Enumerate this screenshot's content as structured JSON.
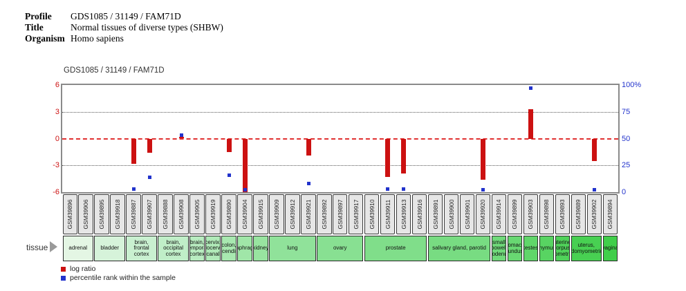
{
  "header": {
    "rows": [
      {
        "label": "Profile",
        "value": "GDS1085 / 31149 / FAM71D"
      },
      {
        "label": "Title",
        "value": "Normal tissues of diverse types (SHBW)"
      },
      {
        "label": "Organism",
        "value": "Homo sapiens"
      }
    ]
  },
  "tissue_row_label": "tissue",
  "legend": {
    "items": [
      {
        "label": "log ratio",
        "color": "#cc1111"
      },
      {
        "label": "percentile rank within the sample",
        "color": "#2233cc"
      }
    ]
  },
  "chart_data": {
    "type": "bar",
    "title": "GDS1085 / 31149 / FAM71D",
    "grid": {
      "dotted_lines_at": [
        3,
        -3
      ],
      "zero_line": "red dashed at 0"
    },
    "left_axis": {
      "color": "#cc1111",
      "range": [
        -6,
        6
      ],
      "ticks": [
        "6",
        "3",
        "0",
        "-3",
        "-6"
      ]
    },
    "right_axis": {
      "color": "#2233cc",
      "range": [
        0,
        100
      ],
      "ticks": [
        "100%",
        "75",
        "50",
        "25",
        "0"
      ]
    },
    "samples": [
      "GSM39896",
      "GSM39906",
      "GSM39895",
      "GSM39918",
      "GSM39887",
      "GSM39907",
      "GSM39888",
      "GSM39908",
      "GSM39905",
      "GSM39919",
      "GSM39890",
      "GSM39904",
      "GSM39915",
      "GSM39909",
      "GSM39912",
      "GSM39921",
      "GSM39892",
      "GSM39897",
      "GSM39917",
      "GSM39910",
      "GSM39911",
      "GSM39913",
      "GSM39916",
      "GSM39891",
      "GSM39900",
      "GSM39901",
      "GSM39920",
      "GSM39914",
      "GSM39899",
      "GSM39903",
      "GSM39898",
      "GSM39893",
      "GSM39889",
      "GSM39902",
      "GSM39894"
    ],
    "series": [
      {
        "name": "log ratio",
        "color": "#cc1111",
        "values": [
          null,
          null,
          null,
          null,
          -2.8,
          -1.6,
          null,
          0.2,
          null,
          null,
          -1.5,
          -6.0,
          null,
          null,
          null,
          -1.9,
          null,
          null,
          null,
          null,
          -4.3,
          -3.9,
          null,
          null,
          null,
          null,
          -4.6,
          null,
          null,
          3.3,
          null,
          null,
          null,
          -2.5,
          null
        ]
      },
      {
        "name": "percentile rank within the sample",
        "color": "#2233cc",
        "values": [
          null,
          null,
          null,
          null,
          3,
          14,
          null,
          53,
          null,
          null,
          16,
          2,
          null,
          null,
          null,
          8,
          null,
          null,
          null,
          null,
          3,
          3,
          null,
          null,
          null,
          null,
          2,
          null,
          null,
          97,
          null,
          null,
          null,
          2,
          null
        ]
      }
    ],
    "tissue_groups": [
      {
        "label": "adrenal",
        "span": 2,
        "color": "#e4f6e4"
      },
      {
        "label": "bladder",
        "span": 2,
        "color": "#d6f3da"
      },
      {
        "label": "brain, frontal cortex",
        "span": 2,
        "color": "#c9f0d0"
      },
      {
        "label": "brain, occipital cortex",
        "span": 2,
        "color": "#c0eec8"
      },
      {
        "label": "brain, temporal cortex",
        "span": 1,
        "color": "#b8ecc0"
      },
      {
        "label": "cervix, endocervical canal",
        "span": 1,
        "color": "#b0eab8"
      },
      {
        "label": "colon, ascending",
        "span": 1,
        "color": "#a8e8b0"
      },
      {
        "label": "diaphragm",
        "span": 1,
        "color": "#a0e6a8"
      },
      {
        "label": "kidney",
        "span": 1,
        "color": "#98e4a0"
      },
      {
        "label": "lung",
        "span": 3,
        "color": "#90e29a"
      },
      {
        "label": "ovary",
        "span": 3,
        "color": "#88e092"
      },
      {
        "label": "prostate",
        "span": 4,
        "color": "#80de8a"
      },
      {
        "label": "salivary gland, parotid",
        "span": 4,
        "color": "#78dc82"
      },
      {
        "label": "small bowel, duodenum",
        "span": 1,
        "color": "#70da7a"
      },
      {
        "label": "stomach, fundus",
        "span": 1,
        "color": "#68d872"
      },
      {
        "label": "testes",
        "span": 1,
        "color": "#60d66a"
      },
      {
        "label": "thymus",
        "span": 1,
        "color": "#58d462"
      },
      {
        "label": "uterine corpus, myometrium",
        "span": 1,
        "color": "#50d25a"
      },
      {
        "label": "uterus, endomyometrium",
        "span": 2,
        "color": "#48d052"
      },
      {
        "label": "vagina",
        "span": 1,
        "color": "#40ce4a"
      }
    ]
  }
}
